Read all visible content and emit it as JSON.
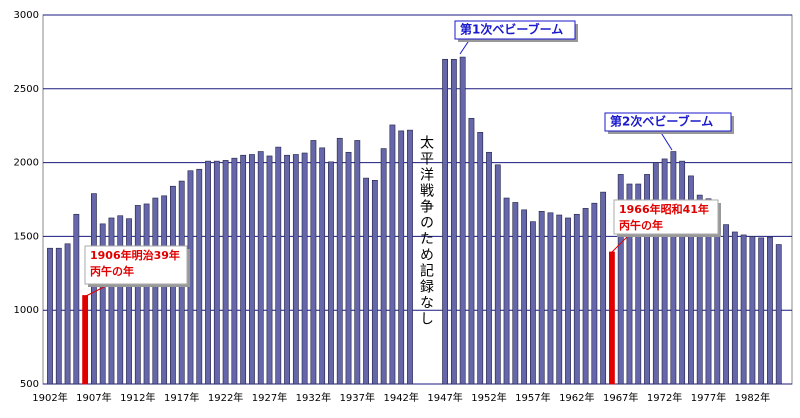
{
  "chart_data": {
    "type": "bar",
    "categories": [
      "1902年",
      null,
      null,
      null,
      null,
      "1907年",
      null,
      null,
      null,
      null,
      "1912年",
      null,
      null,
      null,
      null,
      "1917年",
      null,
      null,
      null,
      null,
      "1922年",
      null,
      null,
      null,
      null,
      "1927年",
      null,
      null,
      null,
      null,
      "1932年",
      null,
      null,
      null,
      null,
      "1937年",
      null,
      null,
      null,
      null,
      "1942年",
      null,
      null,
      null,
      null,
      "1947年",
      null,
      null,
      null,
      null,
      "1952年",
      null,
      null,
      null,
      null,
      "1957年",
      null,
      null,
      null,
      null,
      "1962年",
      null,
      null,
      null,
      null,
      "1967年",
      null,
      null,
      null,
      null,
      "1972年",
      null,
      null,
      null,
      null,
      "1977年",
      null,
      null,
      null,
      null,
      "1982年",
      null,
      null,
      null
    ],
    "values": [
      1420,
      1420,
      1450,
      1650,
      1100,
      1790,
      1585,
      1625,
      1640,
      1620,
      1710,
      1720,
      1760,
      1775,
      1840,
      1875,
      1945,
      1955,
      2010,
      2010,
      2015,
      2030,
      2050,
      2055,
      2075,
      2045,
      2105,
      2050,
      2055,
      2065,
      2150,
      2100,
      2005,
      2165,
      2070,
      2150,
      1895,
      1880,
      2095,
      2255,
      2215,
      2220,
      null,
      null,
      null,
      2700,
      2700,
      2715,
      2300,
      2205,
      2070,
      1985,
      1760,
      1730,
      1680,
      1600,
      1670,
      1660,
      1645,
      1625,
      1650,
      1690,
      1725,
      1800,
      1395,
      1920,
      1855,
      1855,
      1920,
      2000,
      2025,
      2075,
      2010,
      1910,
      1780,
      1755,
      1710,
      1580,
      1530,
      1510,
      1500,
      1490,
      1495,
      1445
    ],
    "color": "#6666aa",
    "highlight_color": "#e00000",
    "highlight_index_note": null,
    "ylim": [
      500,
      3000
    ],
    "yticks": [
      500,
      1000,
      1500,
      2000,
      2500,
      3000
    ],
    "grid": true,
    "annotations": [
      {
        "lines": [
          "1906年明治39年",
          "丙午の年"
        ],
        "style": "ann"
      },
      {
        "lines": [
          "1966年昭和41年",
          "丙午の年"
        ],
        "style": "ann"
      },
      {
        "lines": [
          "第1次ベビーブーム"
        ],
        "style": "boom"
      },
      {
        "lines": [
          "第2次ベビーブーム"
        ],
        "style": "boom"
      },
      {
        "lines": [
          "太平洋戦争のため記録なし"
        ],
        "style": "war"
      }
    ]
  }
}
